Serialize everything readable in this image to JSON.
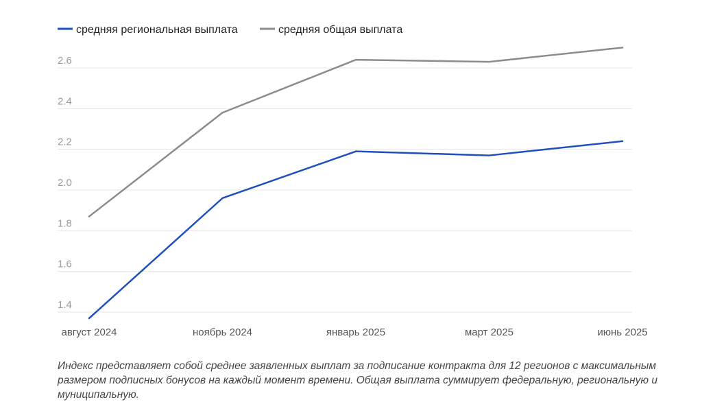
{
  "chart_data": {
    "type": "line",
    "categories": [
      "август 2024",
      "ноябрь 2024",
      "январь 2025",
      "март 2025",
      "июнь 2025"
    ],
    "series": [
      {
        "name": "средняя региональная выплата",
        "color": "#1f4fbf",
        "values": [
          1.37,
          1.96,
          2.19,
          2.17,
          2.24
        ]
      },
      {
        "name": "средняя общая выплата",
        "color": "#8c8c8c",
        "values": [
          1.87,
          2.38,
          2.64,
          2.63,
          2.7
        ]
      }
    ],
    "yticks": [
      "1.4",
      "1.6",
      "1.8",
      "2.0",
      "2.2",
      "2.4",
      "2.6"
    ],
    "ylim": [
      1.3,
      2.8
    ],
    "grid": true,
    "legend_position": "top-left"
  },
  "note": "Индекс представляет собой среднее заявленных выплат за подписание контракта для 12 регионов с максимальным размером подписных бонусов на каждый момент времени. Общая выплата суммирует федеральную, региональную и муниципальную."
}
